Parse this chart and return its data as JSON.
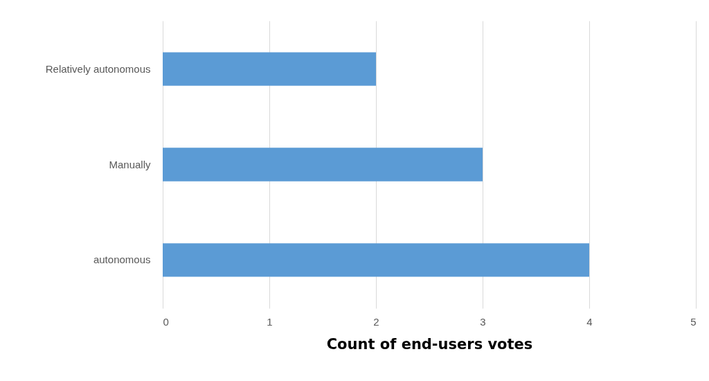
{
  "chart_data": {
    "type": "bar",
    "orientation": "horizontal",
    "categories": [
      "Relatively autonomous",
      "Manually",
      "autonomous"
    ],
    "values": [
      2,
      3,
      4
    ],
    "color": "#5b9bd5",
    "xlim": [
      0,
      5
    ],
    "xticks": [
      0,
      1,
      2,
      3,
      4,
      5
    ],
    "xlabel": "Count of end-users votes",
    "grid": "x"
  }
}
